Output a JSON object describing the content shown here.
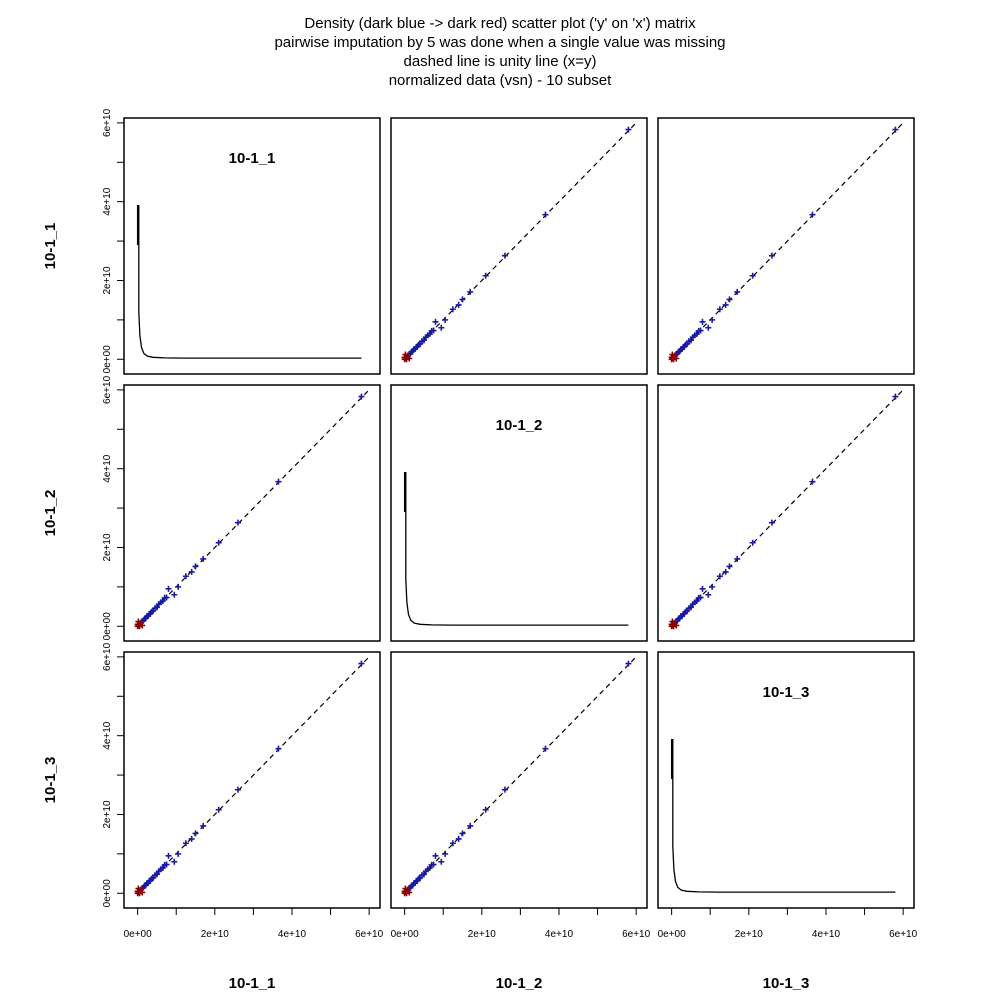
{
  "chart_data": {
    "type": "scatter",
    "title_lines": [
      "Density (dark blue -> dark red) scatter plot ('y' on 'x') matrix",
      "pairwise imputation by 5 was done when a single value was missing",
      "dashed line is unity line (x=y)",
      "normalized data (vsn) - 10 subset"
    ],
    "variables": [
      "10-1_1",
      "10-1_2",
      "10-1_3"
    ],
    "axis_range": [
      0,
      60000000000
    ],
    "axis_ticks": [
      0,
      20000000000,
      40000000000,
      60000000000
    ],
    "axis_tick_labels": [
      "0e+00",
      "2e+10",
      "4e+10",
      "6e+10"
    ],
    "minor_ticks": [
      10000000000,
      30000000000,
      50000000000
    ],
    "unity_line": true,
    "grid": false,
    "colors": {
      "low_density": "#1a1aa0",
      "high_density": "#8b0000",
      "unity_line": "#000000",
      "frame": "#000000"
    },
    "points": [
      [
        0,
        0
      ],
      [
        300000000,
        300000000
      ],
      [
        600000000,
        500000000
      ],
      [
        900000000,
        1000000000
      ],
      [
        1200000000,
        1300000000
      ],
      [
        1500000000,
        1400000000
      ],
      [
        1800000000,
        1900000000
      ],
      [
        2100000000,
        2100000000
      ],
      [
        2400000000,
        2500000000
      ],
      [
        2700000000,
        2600000000
      ],
      [
        3000000000,
        3100000000
      ],
      [
        3300000000,
        3200000000
      ],
      [
        3600000000,
        3700000000
      ],
      [
        4000000000,
        3900000000
      ],
      [
        4500000000,
        4600000000
      ],
      [
        5000000000,
        4800000000
      ],
      [
        5500000000,
        5600000000
      ],
      [
        6000000000,
        6100000000
      ],
      [
        6500000000,
        6400000000
      ],
      [
        7000000000,
        7200000000
      ],
      [
        7500000000,
        7300000000
      ],
      [
        8000000000,
        9500000000
      ],
      [
        9500000000,
        8000000000
      ],
      [
        10500000000,
        10000000000
      ],
      [
        12500000000,
        12700000000
      ],
      [
        14000000000,
        13800000000
      ],
      [
        15000000000,
        15200000000
      ],
      [
        17000000000,
        17100000000
      ],
      [
        21000000000,
        21200000000
      ],
      [
        26000000000,
        26300000000
      ],
      [
        36500000000,
        36700000000
      ],
      [
        58000000000,
        58300000000
      ],
      [
        200000000,
        1200000000
      ],
      [
        1200000000,
        200000000
      ],
      [
        500000000,
        0
      ],
      [
        0,
        500000000
      ]
    ],
    "density_curve": [
      [
        0,
        29000000000
      ],
      [
        0,
        39000000000
      ],
      [
        300000000,
        39000000000
      ],
      [
        300000000,
        12000000000
      ],
      [
        600000000,
        6000000000
      ],
      [
        1000000000,
        3000000000
      ],
      [
        1600000000,
        1500000000
      ],
      [
        2500000000,
        800000000
      ],
      [
        4000000000,
        500000000
      ],
      [
        7000000000,
        350000000
      ],
      [
        12000000000,
        300000000
      ],
      [
        30000000000,
        300000000
      ],
      [
        58000000000,
        300000000
      ]
    ]
  }
}
